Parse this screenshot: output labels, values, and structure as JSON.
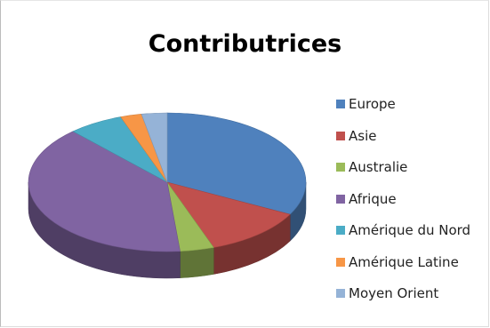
{
  "chart_data": {
    "type": "pie",
    "style": "3d",
    "title": "Contributrices",
    "legend_position": "right",
    "categories": [
      "Europe",
      "Asie",
      "Australie",
      "Afrique",
      "Amérique du Nord",
      "Amérique Latine",
      "Moyen Orient"
    ],
    "values": [
      33,
      12,
      4,
      40,
      6.5,
      2.5,
      3
    ],
    "colors": [
      "#4F81BD",
      "#C0504D",
      "#9BBB59",
      "#8064A2",
      "#4BACC6",
      "#F79646",
      "#95B3D7"
    ]
  }
}
